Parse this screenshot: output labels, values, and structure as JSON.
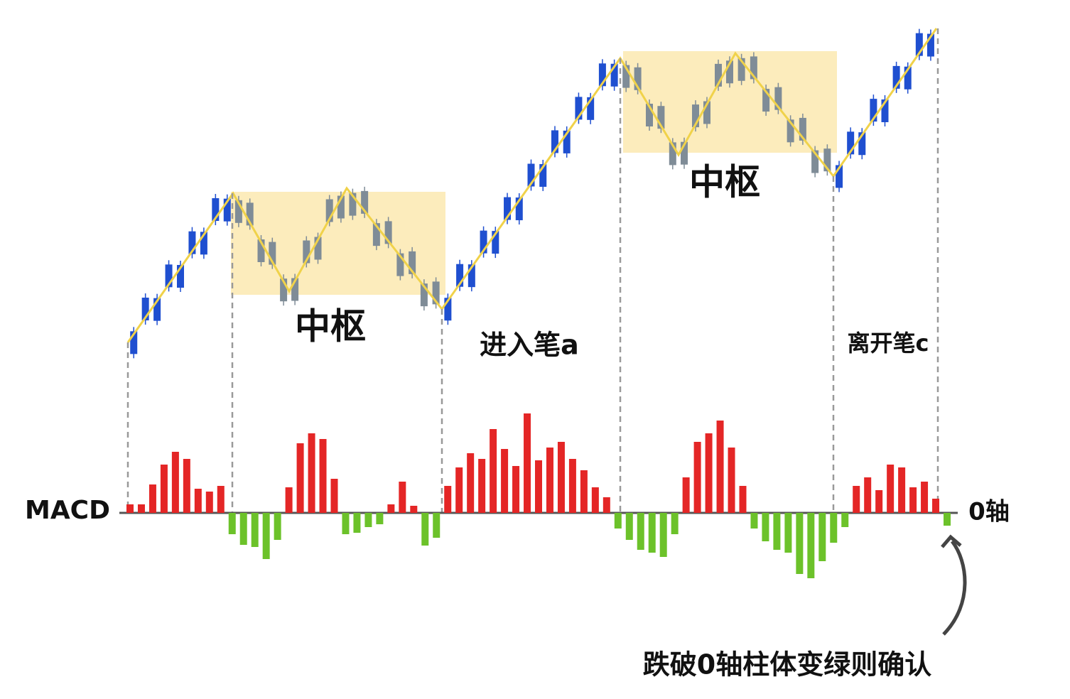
{
  "diagram": {
    "zones": [
      {
        "label": "中枢"
      },
      {
        "label": "中枢"
      }
    ],
    "strokes": [
      {
        "label": "进入笔a"
      },
      {
        "label": "离开笔c"
      }
    ],
    "macd": {
      "label": "MACD",
      "zero_axis_label": "0轴",
      "bars": [
        1.2,
        1.2,
        4.0,
        6.8,
        8.6,
        7.6,
        3.4,
        3.0,
        3.8,
        -3.0,
        -4.5,
        -4.8,
        -6.5,
        -3.8,
        3.6,
        9.8,
        11.2,
        10.4,
        4.8,
        -3.0,
        -2.8,
        -2.0,
        -1.6,
        1.2,
        4.4,
        1.0,
        -4.6,
        -3.5,
        3.8,
        6.4,
        8.4,
        7.6,
        11.8,
        9.0,
        6.6,
        14.0,
        7.4,
        9.2,
        10.0,
        7.6,
        6.0,
        3.6,
        2.2,
        -2.2,
        -3.8,
        -5.2,
        -5.6,
        -6.2,
        -3.0,
        5.0,
        10.0,
        11.2,
        13.0,
        9.2,
        3.8,
        -2.2,
        -4.0,
        -5.2,
        -5.6,
        -8.6,
        -9.2,
        -6.8,
        -4.2,
        -2.0,
        3.8,
        5.0,
        3.2,
        6.8,
        6.4,
        3.6,
        4.4,
        2.0,
        -1.8
      ]
    },
    "note": "跌破0轴柱体变绿则确认"
  }
}
